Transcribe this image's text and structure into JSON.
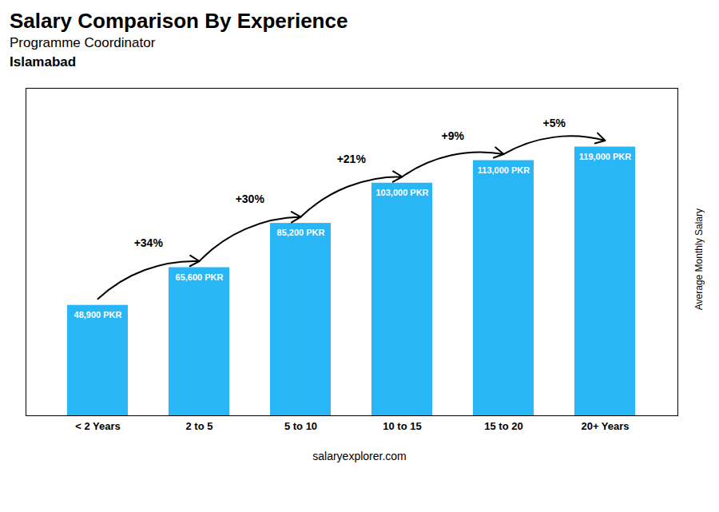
{
  "chart_data": {
    "type": "bar",
    "title": "Salary Comparison By Experience",
    "subtitle": "Programme Coordinator",
    "ylabel": "Average Monthly Salary",
    "caption": "salaryexplorer.com",
    "categories": [
      "< 2 Years",
      "2 to 5",
      "5 to 10",
      "10 to 15",
      "15 to 20",
      "20+ Years"
    ],
    "values": [
      48900,
      65600,
      85200,
      103000,
      113000,
      119000
    ],
    "value_labels": [
      "48,900 PKR",
      "65,600 PKR",
      "85,200 PKR",
      "103,000 PKR",
      "113,000 PKR",
      "119,000 PKR"
    ],
    "data_labels": true,
    "color": "#29b6f6",
    "ylim": [
      0,
      145000
    ],
    "tick_labels": "x",
    "grid": false,
    "annotations": [
      {
        "text": "Islamabad"
      },
      {
        "text": "+34%",
        "from": "< 2 Years",
        "to": "2 to 5"
      },
      {
        "text": "+30%",
        "from": "2 to 5",
        "to": "5 to 10"
      },
      {
        "text": "+21%",
        "from": "5 to 10",
        "to": "10 to 15"
      },
      {
        "text": "+9%",
        "from": "10 to 15",
        "to": "15 to 20"
      },
      {
        "text": "+5%",
        "from": "15 to 20",
        "to": "20+ Years"
      }
    ]
  }
}
